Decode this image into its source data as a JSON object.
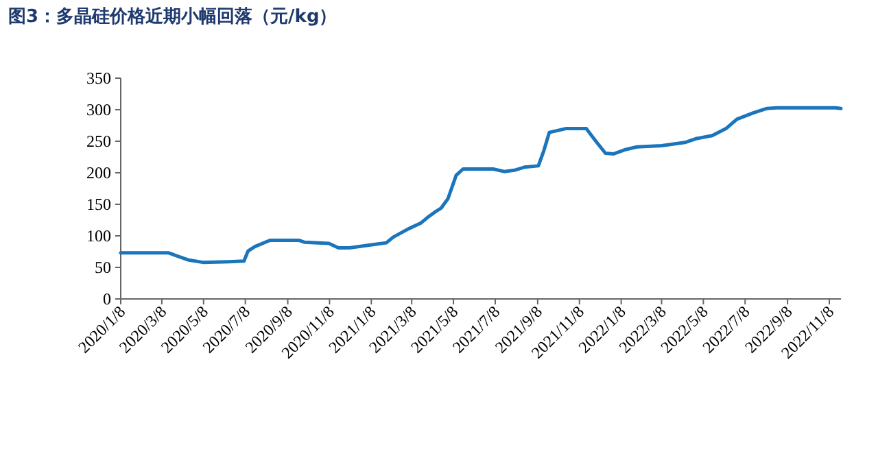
{
  "chart_data": {
    "type": "line",
    "title": "图3：多晶硅价格近期小幅回落（元/kg）",
    "x": [
      "2020-01-08",
      "2020-03-18",
      "2020-04-15",
      "2020-05-07",
      "2020-06-14",
      "2020-07-06",
      "2020-07-12",
      "2020-07-22",
      "2020-08-13",
      "2020-09-24",
      "2020-10-02",
      "2020-11-07",
      "2020-11-21",
      "2020-12-07",
      "2020-12-27",
      "2021-01-16",
      "2021-01-30",
      "2021-02-09",
      "2021-03-03",
      "2021-03-21",
      "2021-03-31",
      "2021-04-10",
      "2021-04-20",
      "2021-04-30",
      "2021-05-12",
      "2021-05-22",
      "2021-07-05",
      "2021-07-21",
      "2021-08-05",
      "2021-08-20",
      "2021-09-09",
      "2021-09-17",
      "2021-09-25",
      "2021-10-19",
      "2021-11-18",
      "2021-12-02",
      "2021-12-16",
      "2021-12-28",
      "2022-01-15",
      "2022-01-31",
      "2022-03-08",
      "2022-04-11",
      "2022-04-27",
      "2022-05-21",
      "2022-06-10",
      "2022-06-26",
      "2022-07-20",
      "2022-08-09",
      "2022-08-23",
      "2022-11-17",
      "2022-11-25"
    ],
    "series": [
      {
        "color": "#1a75bc",
        "values": [
          73,
          73,
          62,
          58,
          59,
          60,
          76,
          83,
          93,
          93,
          90,
          88,
          81,
          81,
          84,
          87,
          89,
          98,
          111,
          120,
          129,
          137,
          144,
          159,
          196,
          206,
          206,
          202,
          204,
          209,
          211,
          235,
          264,
          270,
          270,
          250,
          231,
          230,
          237,
          241,
          243,
          248,
          254,
          259,
          270,
          285,
          295,
          302,
          303,
          303,
          302
        ]
      }
    ],
    "xlim": [
      "2020-01-08",
      "2022-11-25"
    ],
    "xticks": [
      {
        "value": "2020-01-08",
        "label": "2020/1/8"
      },
      {
        "value": "2020-03-08",
        "label": "2020/3/8"
      },
      {
        "value": "2020-05-08",
        "label": "2020/5/8"
      },
      {
        "value": "2020-07-08",
        "label": "2020/7/8"
      },
      {
        "value": "2020-09-08",
        "label": "2020/9/8"
      },
      {
        "value": "2020-11-08",
        "label": "2020/11/8"
      },
      {
        "value": "2021-01-08",
        "label": "2021/1/8"
      },
      {
        "value": "2021-03-08",
        "label": "2021/3/8"
      },
      {
        "value": "2021-05-08",
        "label": "2021/5/8"
      },
      {
        "value": "2021-07-08",
        "label": "2021/7/8"
      },
      {
        "value": "2021-09-08",
        "label": "2021/9/8"
      },
      {
        "value": "2021-11-08",
        "label": "2021/11/8"
      },
      {
        "value": "2022-01-08",
        "label": "2022/1/8"
      },
      {
        "value": "2022-03-08",
        "label": "2022/3/8"
      },
      {
        "value": "2022-05-08",
        "label": "2022/5/8"
      },
      {
        "value": "2022-07-08",
        "label": "2022/7/8"
      },
      {
        "value": "2022-09-08",
        "label": "2022/9/8"
      },
      {
        "value": "2022-11-08",
        "label": "2022/11/8"
      }
    ],
    "ylim": [
      0,
      350
    ],
    "yticks": [
      0,
      50,
      100,
      150,
      200,
      250,
      300,
      350
    ],
    "grid": false
  }
}
